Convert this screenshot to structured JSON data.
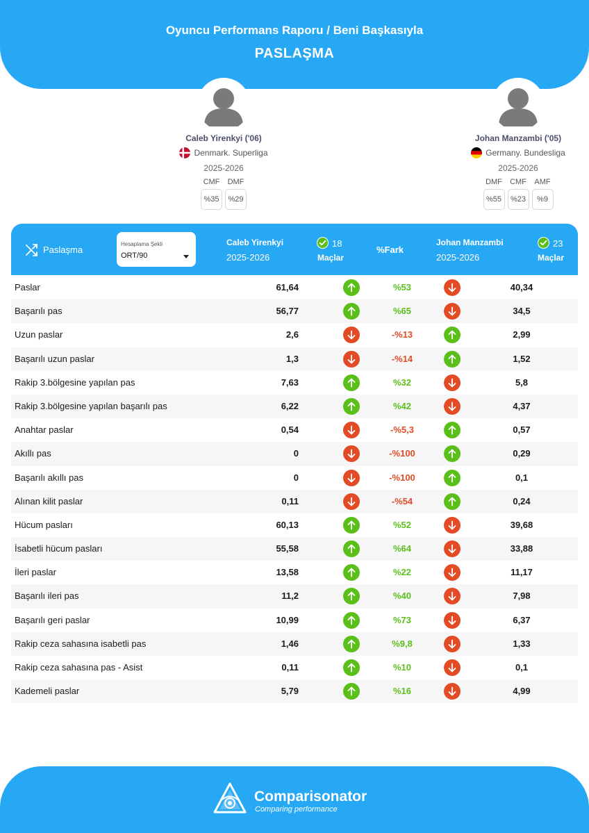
{
  "header": {
    "title": "Oyuncu Performans Raporu / Beni Başkasıyla",
    "subtitle": "PASLAŞMA"
  },
  "player1": {
    "name": "Caleb Yirenkyi ('06)",
    "league": "Denmark. Superliga",
    "season": "2025-2026",
    "flag_colors": [
      "#c8102e",
      "#ffffff"
    ],
    "positions": [
      {
        "label": "CMF",
        "value": "%35"
      },
      {
        "label": "DMF",
        "value": "%29"
      }
    ]
  },
  "player2": {
    "name": "Johan Manzambi ('05)",
    "league": "Germany. Bundesliga",
    "season": "2025-2026",
    "flag_colors": [
      "#000000",
      "#dd0000",
      "#ffce00"
    ],
    "positions": [
      {
        "label": "DMF",
        "value": "%55"
      },
      {
        "label": "CMF",
        "value": "%23"
      },
      {
        "label": "AMF",
        "value": "%9"
      }
    ]
  },
  "table": {
    "category_label": "Paslaşma",
    "category_icon": "shuffle-icon",
    "calc_label": "Hesaplama Şekli",
    "calc_value": "ORT/90",
    "p1_name": "Caleb Yirenkyi",
    "p1_season": "2025-2026",
    "p1_matches": "18",
    "p1_matches_label": "Maçlar",
    "fark_label": "%Fark",
    "p2_name": "Johan Manzambi",
    "p2_season": "2025-2026",
    "p2_matches": "23",
    "p2_matches_label": "Maçlar",
    "colors": {
      "accent": "#27a8f5",
      "up": "#5bbf1a",
      "down": "#e24b25"
    },
    "rows": [
      {
        "label": "Paslar",
        "v1": "61,64",
        "pct": "%53",
        "winner": 1,
        "v2": "40,34"
      },
      {
        "label": "Başarılı pas",
        "v1": "56,77",
        "pct": "%65",
        "winner": 1,
        "v2": "34,5"
      },
      {
        "label": "Uzun paslar",
        "v1": "2,6",
        "pct": "-%13",
        "winner": 2,
        "v2": "2,99"
      },
      {
        "label": "Başarılı uzun paslar",
        "v1": "1,3",
        "pct": "-%14",
        "winner": 2,
        "v2": "1,52"
      },
      {
        "label": "Rakip 3.bölgesine yapılan pas",
        "v1": "7,63",
        "pct": "%32",
        "winner": 1,
        "v2": "5,8"
      },
      {
        "label": "Rakip 3.bölgesine yapılan başarılı pas",
        "v1": "6,22",
        "pct": "%42",
        "winner": 1,
        "v2": "4,37"
      },
      {
        "label": "Anahtar paslar",
        "v1": "0,54",
        "pct": "-%5,3",
        "winner": 2,
        "v2": "0,57"
      },
      {
        "label": "Akıllı pas",
        "v1": "0",
        "pct": "-%100",
        "winner": 2,
        "v2": "0,29"
      },
      {
        "label": "Başarılı akıllı pas",
        "v1": "0",
        "pct": "-%100",
        "winner": 2,
        "v2": "0,1"
      },
      {
        "label": "Alınan kilit paslar",
        "v1": "0,11",
        "pct": "-%54",
        "winner": 2,
        "v2": "0,24"
      },
      {
        "label": "Hücum pasları",
        "v1": "60,13",
        "pct": "%52",
        "winner": 1,
        "v2": "39,68"
      },
      {
        "label": "İsabetli hücum pasları",
        "v1": "55,58",
        "pct": "%64",
        "winner": 1,
        "v2": "33,88"
      },
      {
        "label": "İleri paslar",
        "v1": "13,58",
        "pct": "%22",
        "winner": 1,
        "v2": "11,17"
      },
      {
        "label": "Başarılı ileri pas",
        "v1": "11,2",
        "pct": "%40",
        "winner": 1,
        "v2": "7,98"
      },
      {
        "label": "Başarılı geri paslar",
        "v1": "10,99",
        "pct": "%73",
        "winner": 1,
        "v2": "6,37"
      },
      {
        "label": "Rakip ceza sahasına isabetli pas",
        "v1": "1,46",
        "pct": "%9,8",
        "winner": 1,
        "v2": "1,33"
      },
      {
        "label": "Rakip ceza sahasına pas - Asist",
        "v1": "0,11",
        "pct": "%10",
        "winner": 1,
        "v2": "0,1"
      },
      {
        "label": "Kademeli paslar",
        "v1": "5,79",
        "pct": "%16",
        "winner": 1,
        "v2": "4,99"
      }
    ]
  },
  "footer": {
    "brand": "Comparisonator",
    "tagline": "Comparing performance"
  }
}
